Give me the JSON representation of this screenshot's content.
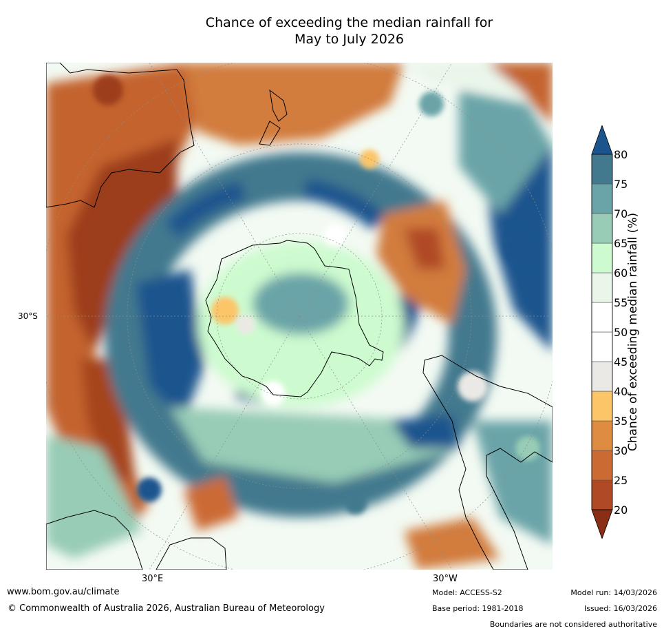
{
  "title": {
    "line1": "Chance of exceeding the median rainfall for",
    "line2": "May to July 2026"
  },
  "map": {
    "lat_label": "30°S",
    "lon_labels": [
      "30°E",
      "30°W"
    ]
  },
  "colorbar": {
    "label": "Chance of exceeding median rainfall (%)",
    "ticks": [
      "20",
      "25",
      "30",
      "35",
      "40",
      "45",
      "50",
      "55",
      "60",
      "65",
      "70",
      "75",
      "80"
    ],
    "colors": [
      "#8a2e16",
      "#b04a26",
      "#cc6a34",
      "#dd8c42",
      "#fcc567",
      "#ebe9e5",
      "#ffffff",
      "#ffffff",
      "#eaf6ea",
      "#cdfbcf",
      "#98ccb6",
      "#6aa4a8",
      "#43798e",
      "#1c558e"
    ]
  },
  "footer": {
    "url": "www.bom.gov.au/climate",
    "copyright": "© Commonwealth of Australia 2026, Australian Bureau of Meteorology",
    "model": "Model: ACCESS-S2",
    "base_period": "Base period: 1981-2018",
    "model_run": "Model run: 14/03/2026",
    "issued": "Issued: 16/03/2026",
    "disclaimer": "Boundaries are not considered authoritative"
  }
}
